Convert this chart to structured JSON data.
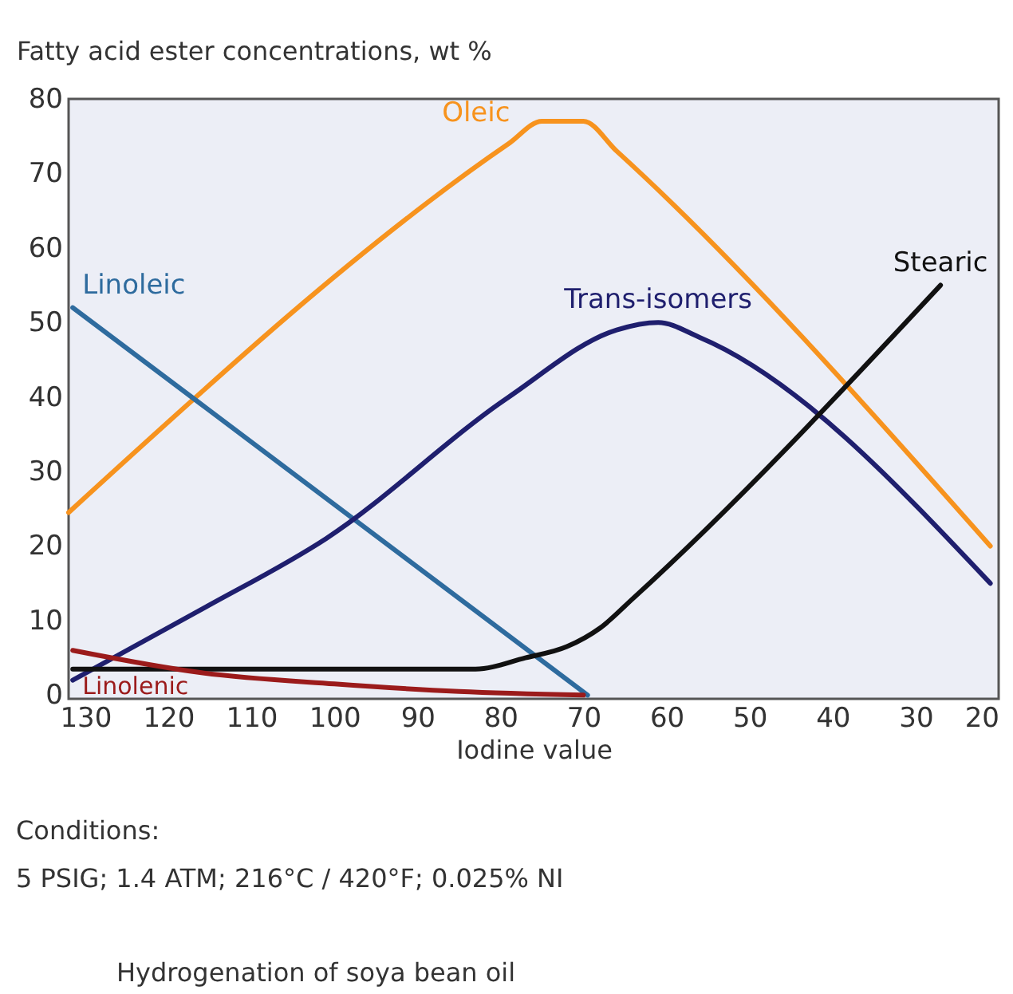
{
  "chart_data": {
    "type": "line",
    "ylabel": "Fatty acid ester concentrations, wt %",
    "xlabel": "Iodine value",
    "xlim": [
      132,
      20
    ],
    "xticks": [
      130,
      120,
      110,
      100,
      90,
      80,
      70,
      60,
      50,
      40,
      30,
      20
    ],
    "ylim": [
      -0.5,
      80
    ],
    "yticks": [
      0,
      10,
      20,
      30,
      40,
      50,
      60,
      70,
      80
    ],
    "grid": false,
    "legend": false,
    "marker": "none",
    "line_style": "solid",
    "series": [
      {
        "name": "Oleic",
        "color": "#f7931e",
        "x": [
          132,
          79,
          75,
          70,
          66,
          21
        ],
        "values": [
          24.5,
          74,
          77,
          77,
          73,
          20
        ]
      },
      {
        "name": "Linoleic",
        "color": "#2e6b9e",
        "x": [
          131.5,
          69.5
        ],
        "values": [
          52,
          0
        ]
      },
      {
        "name": "Trans-isomers",
        "color": "#1f1f6e",
        "x": [
          131.5,
          116,
          101,
          79,
          66,
          61,
          56,
          21
        ],
        "values": [
          2,
          11.5,
          21,
          40,
          49,
          50,
          48,
          15
        ]
      },
      {
        "name": "Stearic",
        "color": "#111111",
        "x": [
          131.5,
          83,
          77,
          72,
          68,
          64,
          27
        ],
        "values": [
          3.5,
          3.5,
          5,
          6.5,
          9,
          13,
          55
        ]
      },
      {
        "name": "Linolenic",
        "color": "#9b1b1b",
        "x": [
          131.5,
          116,
          100,
          85,
          70
        ],
        "values": [
          6,
          3,
          1.5,
          0.5,
          0
        ]
      }
    ],
    "annotations": [
      "Conditions:",
      "5 PSIG; 1.4 ATM; 216°C / 420°F; 0.025% NI",
      "Hydrogenation of soya bean oil"
    ]
  }
}
